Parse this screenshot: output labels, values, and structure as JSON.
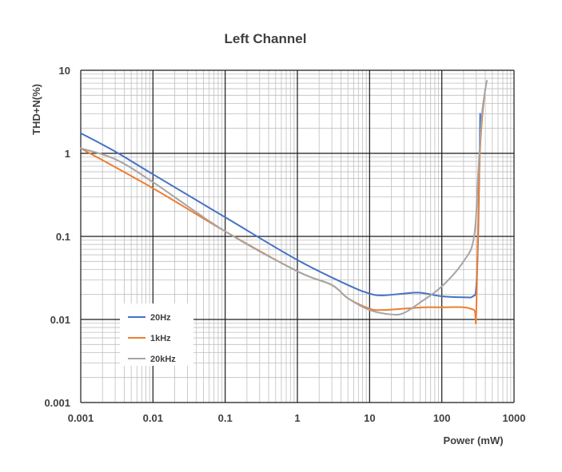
{
  "chart_data": {
    "type": "line",
    "title": "Left Channel",
    "xlabel": "Power (mW)",
    "ylabel": "THD+N(%)",
    "xscale": "log",
    "yscale": "log",
    "xlim": [
      0.001,
      1000
    ],
    "ylim": [
      0.001,
      10
    ],
    "grid": true,
    "legend_position": "bottom-left",
    "x_tick_labels": [
      "0.001",
      "0.01",
      "0.1",
      "1",
      "10",
      "100",
      "1000"
    ],
    "y_tick_labels": [
      "10",
      "1",
      "0.1",
      "0.01",
      "0.001"
    ],
    "series": [
      {
        "name": "20Hz",
        "color": "#4472C4",
        "x": [
          0.001,
          0.003,
          0.01,
          0.1,
          1,
          5,
          10,
          15,
          30,
          50,
          100,
          200,
          270,
          300,
          320,
          340
        ],
        "y": [
          1.75,
          1.05,
          0.56,
          0.17,
          0.052,
          0.026,
          0.0205,
          0.0195,
          0.0205,
          0.021,
          0.019,
          0.0185,
          0.019,
          0.025,
          0.12,
          3.0
        ]
      },
      {
        "name": "1kHz",
        "color": "#ED7D31",
        "x": [
          0.001,
          0.01,
          0.1,
          1,
          3,
          5,
          10,
          15,
          30,
          60,
          100,
          200,
          280,
          300,
          330,
          360,
          400
        ],
        "y": [
          1.15,
          0.38,
          0.115,
          0.038,
          0.026,
          0.018,
          0.0135,
          0.013,
          0.0135,
          0.014,
          0.014,
          0.014,
          0.013,
          0.012,
          0.6,
          2.5,
          6.0
        ]
      },
      {
        "name": "20kHz",
        "color": "#A5A5A5",
        "x": [
          0.001,
          0.003,
          0.01,
          0.1,
          1,
          3,
          5,
          10,
          20,
          30,
          50,
          100,
          200,
          280,
          320,
          360,
          420
        ],
        "y": [
          1.15,
          0.85,
          0.45,
          0.115,
          0.038,
          0.026,
          0.018,
          0.013,
          0.0115,
          0.012,
          0.016,
          0.025,
          0.05,
          0.1,
          0.6,
          3.0,
          7.5
        ]
      }
    ]
  }
}
